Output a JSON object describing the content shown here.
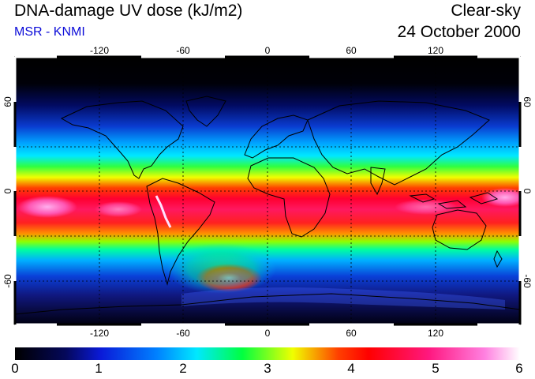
{
  "header": {
    "title": "DNA-damage UV dose (kJ/m2)",
    "subtitle": "MSR - KNMI",
    "condition": "Clear-sky",
    "date": "24 October 2000"
  },
  "map": {
    "x_ticks": [
      "-120",
      "-60",
      "0",
      "60",
      "120"
    ],
    "y_ticks": [
      "60",
      "0",
      "-60"
    ],
    "lon_range": [
      -180,
      180
    ],
    "lat_range": [
      -90,
      90
    ],
    "projection": "equirectangular",
    "grid": "dashed, every 30 degrees"
  },
  "colorbar": {
    "labels": [
      "0",
      "1",
      "2",
      "3",
      "4",
      "5",
      "6"
    ],
    "range": [
      0,
      6
    ],
    "colors": [
      "#000000",
      "#0a14a0",
      "#0060ff",
      "#00d0ff",
      "#00ff60",
      "#ffff00",
      "#ff0000",
      "#ff40a0",
      "#ffc0ff"
    ]
  }
}
